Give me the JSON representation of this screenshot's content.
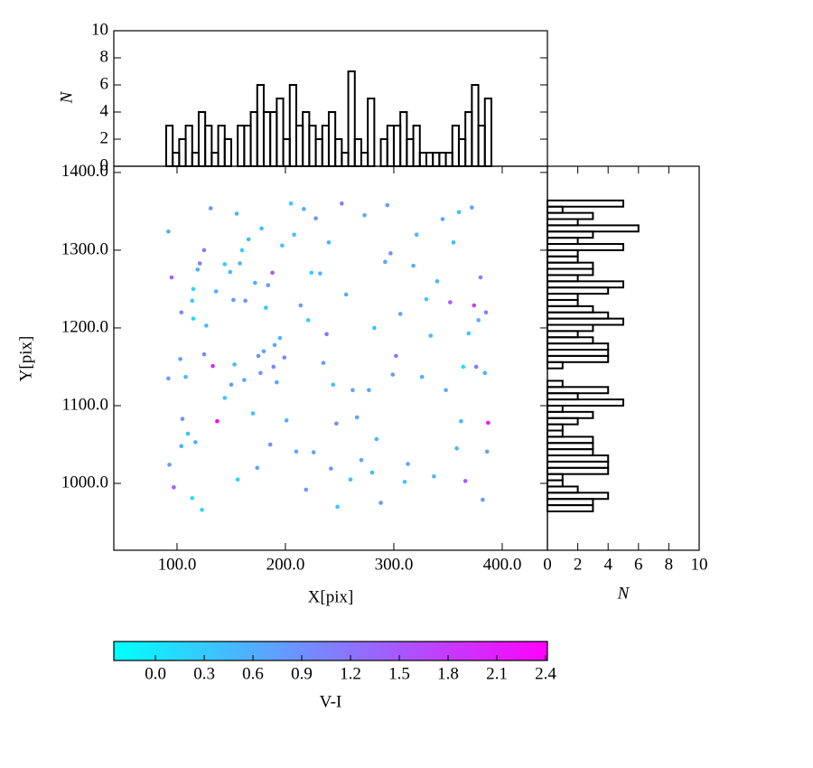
{
  "chart_data": [
    {
      "type": "scatter",
      "xlabel": "X[pix]",
      "ylabel": "Y[pix]",
      "x": [
        92,
        95,
        92,
        93,
        97,
        103,
        104,
        105,
        104,
        108,
        110,
        114,
        115,
        115,
        114,
        117,
        119,
        121,
        123,
        125,
        125,
        127,
        131,
        133,
        136,
        137,
        144,
        144,
        149,
        150,
        152,
        153,
        155,
        156,
        158,
        160,
        162,
        163,
        166,
        170,
        172,
        174,
        175,
        177,
        178,
        180,
        182,
        184,
        186,
        188,
        189,
        190,
        192,
        195,
        197,
        199,
        201,
        205,
        208,
        210,
        214,
        217,
        219,
        221,
        224,
        226,
        228,
        232,
        235,
        238,
        240,
        242,
        244,
        247,
        248,
        252,
        256,
        260,
        262,
        266,
        270,
        273,
        277,
        280,
        282,
        284,
        288,
        292,
        294,
        297,
        299,
        302,
        306,
        310,
        313,
        318,
        321,
        326,
        330,
        334,
        337,
        340,
        345,
        348,
        352,
        355,
        358,
        360,
        362,
        364,
        366,
        369,
        372,
        374,
        376,
        378,
        380,
        382,
        384,
        385,
        387,
        386
      ],
      "values": [
        1324,
        1265,
        1135,
        1024,
        995,
        1160,
        1220,
        1083,
        1048,
        1137,
        1064,
        1235,
        1250,
        1212,
        981,
        1053,
        1275,
        1283,
        966,
        1300,
        1166,
        1203,
        1354,
        1151,
        1247,
        1080,
        1110,
        1282,
        1272,
        1127,
        1236,
        1153,
        1347,
        1005,
        1283,
        1300,
        1133,
        1235,
        1314,
        1090,
        1258,
        1020,
        1164,
        1142,
        1328,
        1170,
        1226,
        1255,
        1050,
        1271,
        1150,
        1178,
        1130,
        1187,
        1306,
        1162,
        1081,
        1360,
        1320,
        1041,
        1229,
        1353,
        992,
        1210,
        1271,
        1040,
        1341,
        1270,
        1155,
        1192,
        1310,
        1019,
        1127,
        1077,
        970,
        1360,
        1243,
        1005,
        1120,
        1085,
        1030,
        1345,
        1120,
        1014,
        1200,
        1057,
        975,
        1285,
        1358,
        1296,
        1140,
        1164,
        1218,
        1002,
        1025,
        1280,
        1320,
        1137,
        1237,
        1190,
        1009,
        1260,
        1340,
        1120,
        1233,
        1310,
        1045,
        1349,
        1080,
        1150,
        1003,
        1193,
        1355,
        1229,
        1150,
        1210,
        1265,
        979,
        1142,
        1220,
        1078,
        1041
      ],
      "color_values": [
        0.6,
        1.4,
        0.8,
        0.8,
        1.4,
        0.7,
        1.0,
        0.9,
        0.6,
        0.5,
        0.4,
        0.3,
        0.2,
        0.2,
        0.1,
        0.6,
        0.6,
        1.1,
        0.2,
        1.2,
        1.0,
        0.5,
        0.8,
        1.9,
        0.6,
        2.3,
        0.4,
        0.3,
        0.5,
        0.8,
        0.8,
        0.4,
        0.5,
        0.2,
        0.5,
        0.2,
        0.6,
        0.9,
        0.5,
        0.4,
        0.6,
        0.7,
        0.9,
        0.8,
        0.4,
        0.7,
        0.3,
        0.8,
        0.9,
        1.5,
        1.0,
        0.6,
        0.7,
        0.5,
        0.4,
        1.0,
        0.6,
        0.3,
        0.4,
        0.7,
        0.8,
        0.6,
        0.8,
        0.3,
        0.3,
        0.7,
        0.9,
        0.5,
        0.8,
        1.2,
        0.5,
        0.9,
        0.4,
        0.9,
        0.3,
        1.2,
        0.6,
        0.4,
        0.7,
        0.7,
        0.7,
        0.6,
        0.6,
        0.5,
        0.4,
        0.4,
        0.9,
        0.7,
        0.8,
        0.9,
        0.8,
        1.1,
        0.7,
        0.3,
        0.7,
        0.6,
        0.5,
        0.6,
        0.3,
        0.5,
        0.5,
        0.5,
        0.7,
        0.6,
        1.5,
        0.4,
        0.5,
        0.4,
        0.4,
        0.1,
        1.5,
        0.3,
        0.7,
        1.7,
        1.2,
        0.6,
        1.0,
        0.8,
        0.6,
        1.0,
        2.2,
        0.8
      ],
      "xlim": [
        41.7,
        441.7
      ],
      "ylim": [
        914,
        1408
      ],
      "xticks": [
        {
          "value": 100,
          "label": "100.0"
        },
        {
          "value": 200,
          "label": "200.0"
        },
        {
          "value": 300,
          "label": "300.0"
        },
        {
          "value": 400,
          "label": "400.0"
        }
      ],
      "yticks": [
        {
          "value": 1000,
          "label": "1000.0"
        },
        {
          "value": 1100,
          "label": "1100.0"
        },
        {
          "value": 1200,
          "label": "1200.0"
        },
        {
          "value": 1300,
          "label": "1300.0"
        },
        {
          "value": 1400,
          "label": "1400.0"
        }
      ],
      "colorbar": {
        "label": "V-I",
        "lim": [
          -0.256,
          2.411
        ],
        "cmap": [
          "#00ffff",
          "#ff00ff"
        ],
        "ticks": [
          {
            "value": 0,
            "label": "0.0"
          },
          0.3,
          0.6,
          0.9,
          1.2,
          1.5,
          1.8,
          2.1,
          2.4
        ]
      }
    },
    {
      "type": "histogram",
      "orientation": "vertical",
      "ylabel": "N",
      "color": "#000000",
      "bins": [
        90,
        96,
        102,
        108,
        114,
        120,
        126,
        132,
        138,
        144,
        150,
        156,
        162,
        168,
        174,
        180,
        186,
        192,
        198,
        204,
        210,
        216,
        222,
        228,
        234,
        240,
        246,
        252,
        258,
        264,
        270,
        276,
        282,
        288,
        294,
        300,
        306,
        312,
        318,
        324,
        330,
        336,
        342,
        348,
        354,
        360,
        366,
        372,
        378,
        384,
        390
      ],
      "counts": [
        3,
        1,
        2,
        3,
        1,
        4,
        3,
        1,
        3,
        2,
        0,
        3,
        3,
        4,
        6,
        4,
        4,
        5,
        2,
        6,
        3,
        4,
        3,
        2,
        3,
        4,
        2,
        1,
        7,
        2,
        1,
        5,
        0,
        2,
        3,
        3,
        4,
        2,
        3,
        1,
        1,
        1,
        1,
        1,
        3,
        2,
        4,
        6,
        3,
        5
      ],
      "xlim": [
        41.7,
        441.7
      ],
      "ylim": [
        0,
        10
      ],
      "yticks": [
        0,
        2,
        4,
        6,
        8,
        10
      ]
    },
    {
      "type": "histogram",
      "orientation": "horizontal",
      "xlabel": "N",
      "color": "#000000",
      "bins": [
        964,
        972,
        980,
        988,
        996,
        1004,
        1012,
        1020,
        1028,
        1036,
        1044,
        1052,
        1060,
        1068,
        1076,
        1084,
        1092,
        1100,
        1108,
        1116,
        1124,
        1132,
        1140,
        1148,
        1156,
        1164,
        1172,
        1180,
        1188,
        1196,
        1204,
        1212,
        1220,
        1228,
        1236,
        1244,
        1252,
        1260,
        1268,
        1276,
        1284,
        1292,
        1300,
        1308,
        1316,
        1324,
        1332,
        1340,
        1348,
        1356,
        1364
      ],
      "counts": [
        3,
        3,
        4,
        2,
        1,
        1,
        4,
        4,
        4,
        3,
        3,
        3,
        1,
        1,
        2,
        3,
        1,
        5,
        2,
        4,
        1,
        0,
        0,
        1,
        4,
        4,
        4,
        3,
        2,
        3,
        5,
        4,
        3,
        2,
        2,
        4,
        5,
        2,
        3,
        3,
        2,
        2,
        5,
        2,
        3,
        6,
        2,
        3,
        1,
        5
      ],
      "xlim": [
        0,
        10
      ],
      "ylim": [
        914,
        1408
      ],
      "xticks": [
        0,
        2,
        4,
        6,
        8,
        10
      ]
    }
  ]
}
